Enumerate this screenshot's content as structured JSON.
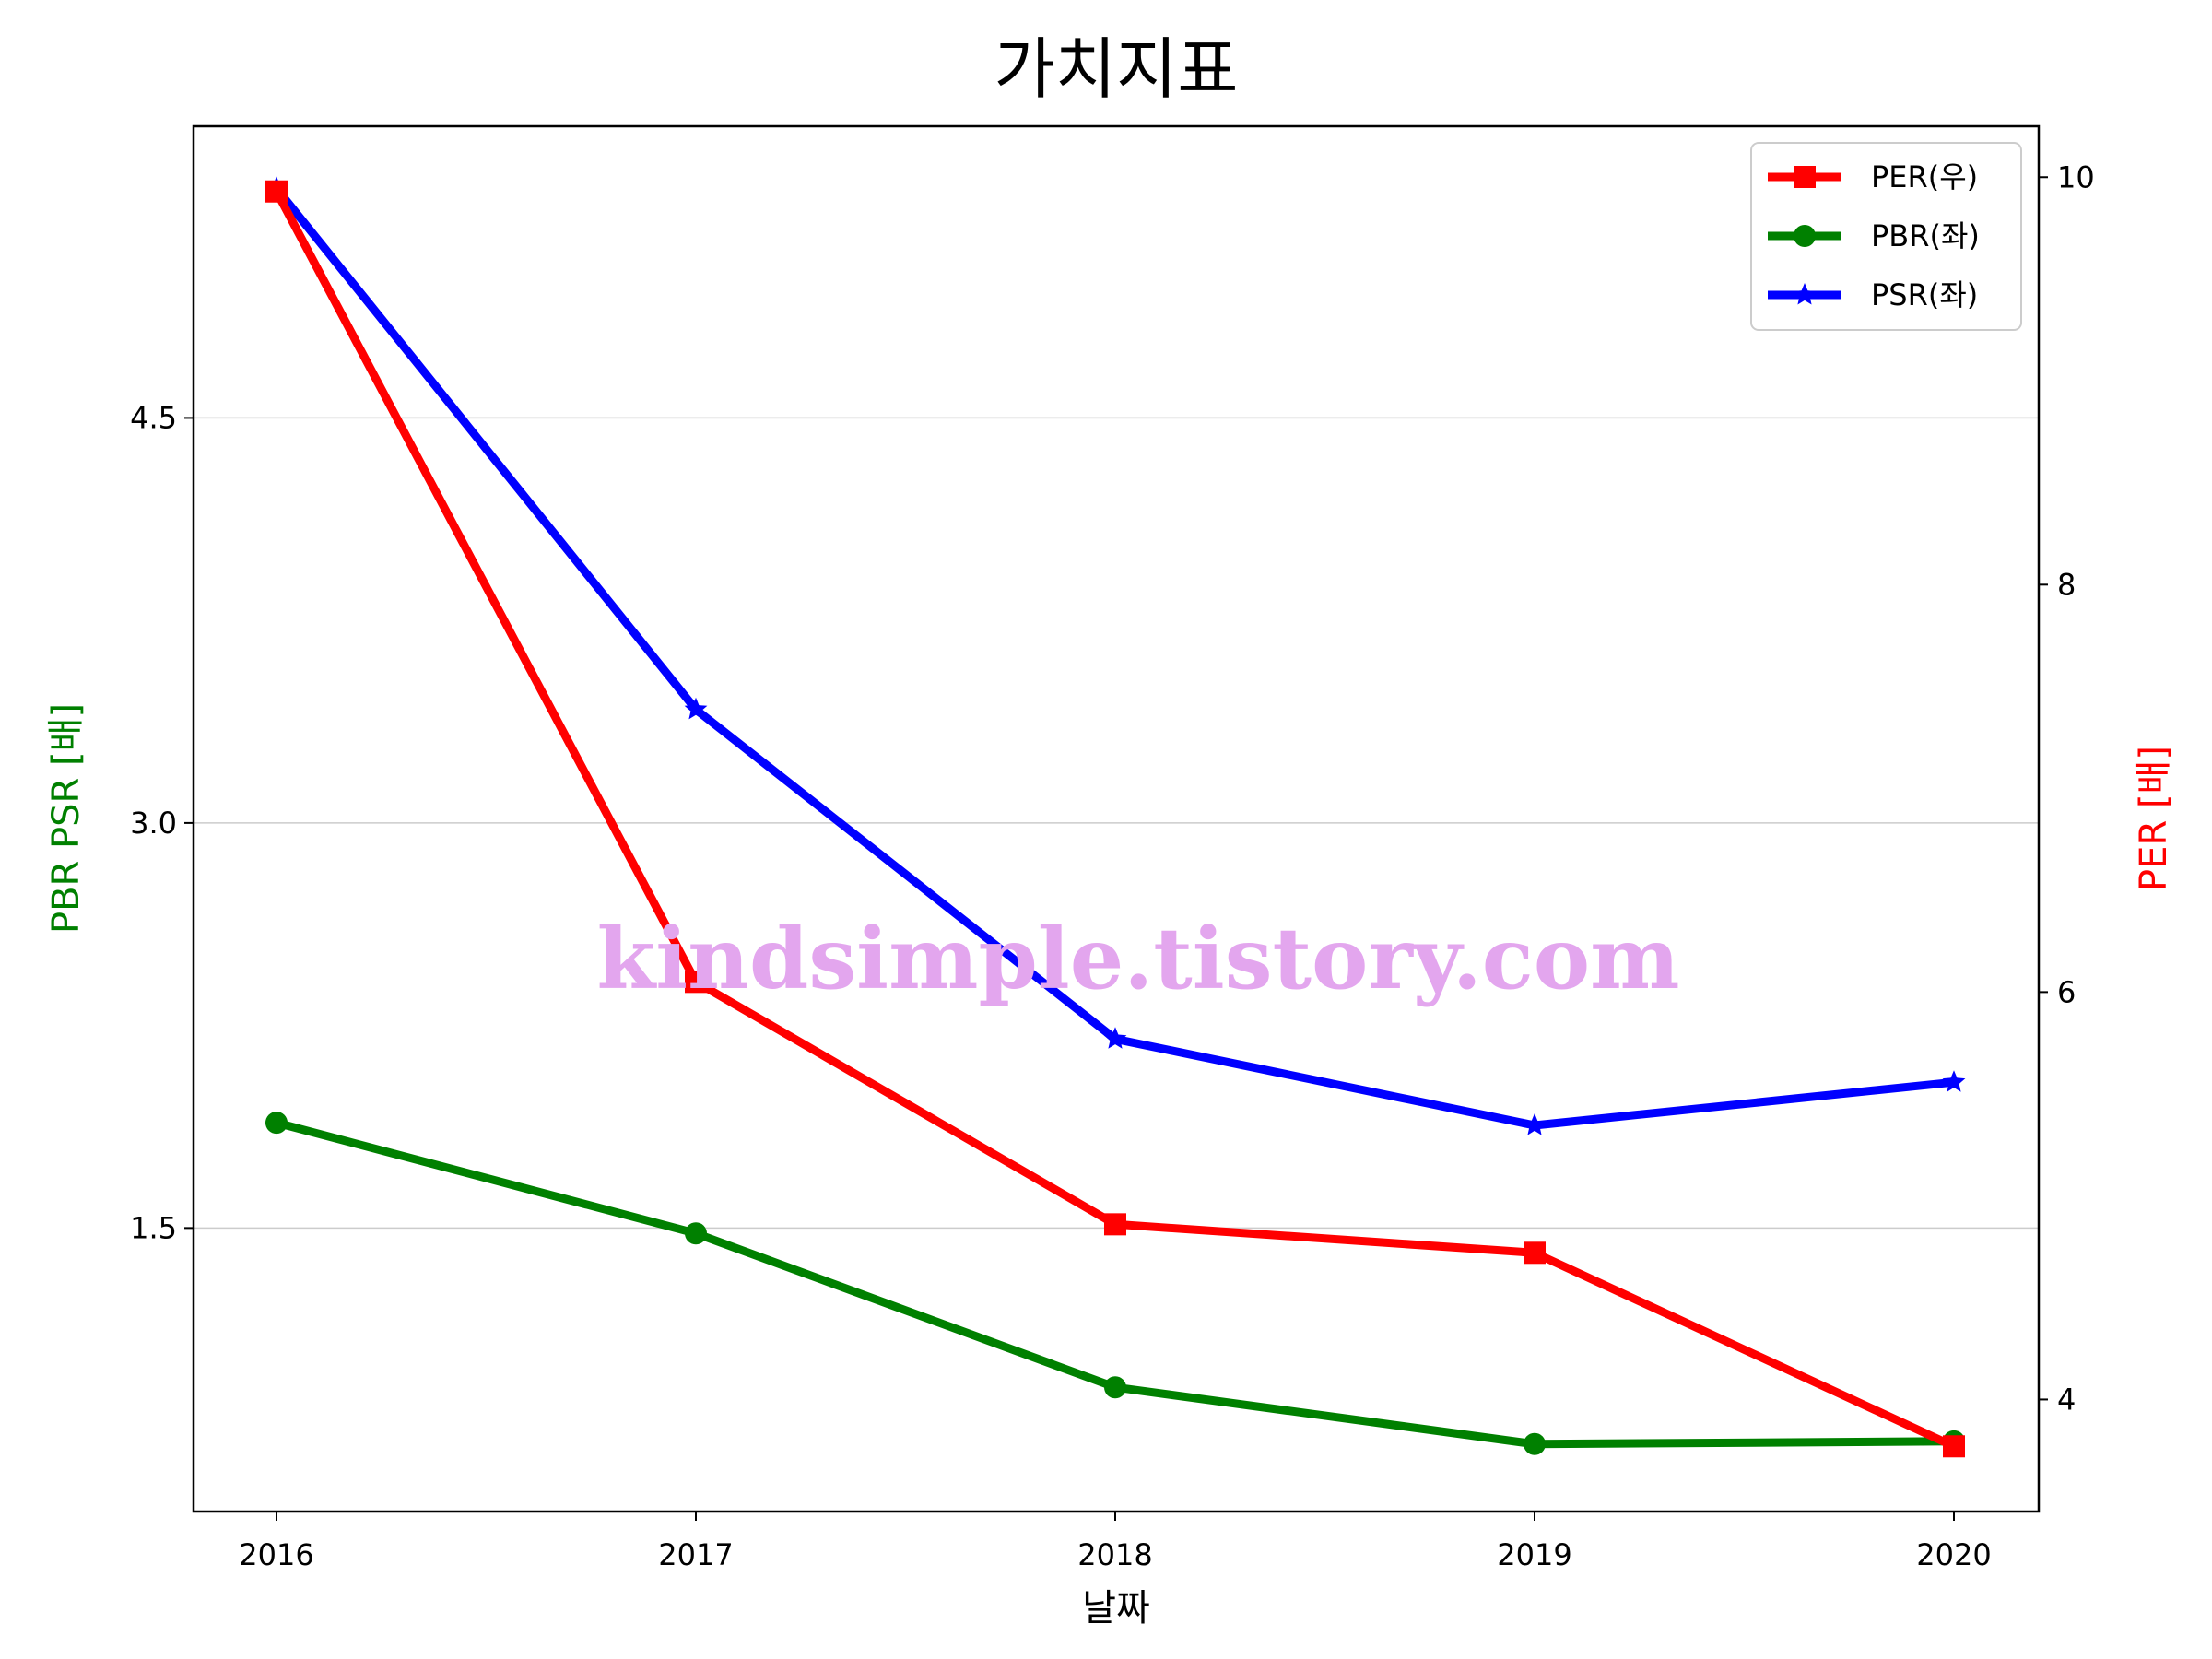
{
  "chart_data": {
    "type": "line",
    "title": "가치지표",
    "xlabel": "날짜",
    "ylabel_left": "PBR PSR [배]",
    "ylabel_right": "PER [배]",
    "categories": [
      "2016",
      "2017",
      "2018",
      "2019",
      "2020"
    ],
    "left_axis": {
      "ylim": [
        0.45,
        5.58
      ],
      "ticks": [
        "1.5",
        "3.0",
        "4.5"
      ],
      "tick_values": [
        1.5,
        3.0,
        4.5
      ],
      "label_color": "#008000"
    },
    "right_axis": {
      "ylim": [
        3.45,
        10.25
      ],
      "ticks": [
        "4",
        "6",
        "8",
        "10"
      ],
      "tick_values": [
        4,
        6,
        8,
        10
      ],
      "label_color": "#ff0000"
    },
    "grid": "horizontal (left axis)",
    "legend_position": "top-right",
    "series": [
      {
        "name": "PER(우)",
        "axis": "right",
        "color": "#ff0000",
        "marker": "square",
        "values": [
          9.93,
          6.05,
          4.86,
          4.72,
          3.77
        ]
      },
      {
        "name": "PBR(좌)",
        "axis": "left",
        "color": "#008000",
        "marker": "circle",
        "values": [
          1.89,
          1.48,
          0.91,
          0.7,
          0.71
        ]
      },
      {
        "name": "PSR(좌)",
        "axis": "left",
        "color": "#0000ff",
        "marker": "star",
        "values": [
          5.35,
          3.42,
          2.2,
          1.88,
          2.04
        ]
      }
    ],
    "watermark": "kindsimple.tistory.com"
  }
}
